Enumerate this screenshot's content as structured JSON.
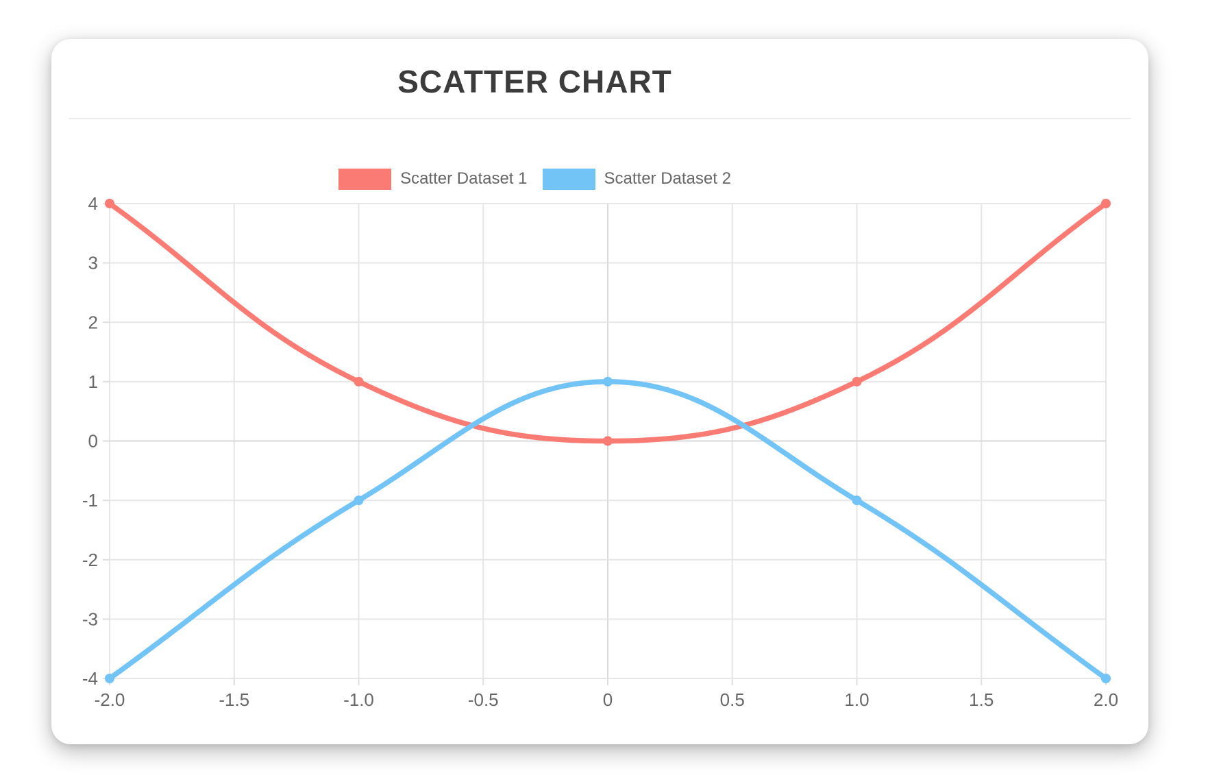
{
  "page": {
    "background": "#ffffff"
  },
  "chart_data": {
    "type": "scatter",
    "show_line": true,
    "smooth": true,
    "title": "SCATTER CHART",
    "legend_position": "top",
    "grid": true,
    "xlim": [
      -2,
      2
    ],
    "ylim": [
      -4,
      4
    ],
    "x_ticks": {
      "values": [
        -2,
        -1.5,
        -1,
        -0.5,
        0,
        0.5,
        1,
        1.5,
        2
      ],
      "labels": [
        "-2.0",
        "-1.5",
        "-1.0",
        "-0.5",
        "0",
        "0.5",
        "1.0",
        "1.5",
        "2.0"
      ]
    },
    "y_ticks": {
      "values": [
        -4,
        -3,
        -2,
        -1,
        0,
        1,
        2,
        3,
        4
      ],
      "labels": [
        "-4",
        "-3",
        "-2",
        "-1",
        "0",
        "1",
        "2",
        "3",
        "4"
      ]
    },
    "series": [
      {
        "name": "Scatter Dataset 1",
        "color": "#fa7b73",
        "points": [
          [
            -2,
            4
          ],
          [
            -1,
            1
          ],
          [
            0,
            0
          ],
          [
            1,
            1
          ],
          [
            2,
            4
          ]
        ]
      },
      {
        "name": "Scatter Dataset 2",
        "color": "#72c3f6",
        "points": [
          [
            -2,
            -4
          ],
          [
            -1,
            -1
          ],
          [
            0,
            1
          ],
          [
            1,
            -1
          ],
          [
            2,
            -4
          ]
        ]
      }
    ],
    "style": {
      "grid_color": "#e6e6e6",
      "zero_line_color": "#d9d9d9",
      "tick_mark_color": "#dedede",
      "tick_label_color": "#686868",
      "title_color": "#3c3c3c",
      "legend_label_color": "#666666",
      "line_width": 7.5,
      "point_radius": 7,
      "tick_font_size": 26,
      "legend_font_size": 24,
      "title_font_size": 46
    }
  }
}
